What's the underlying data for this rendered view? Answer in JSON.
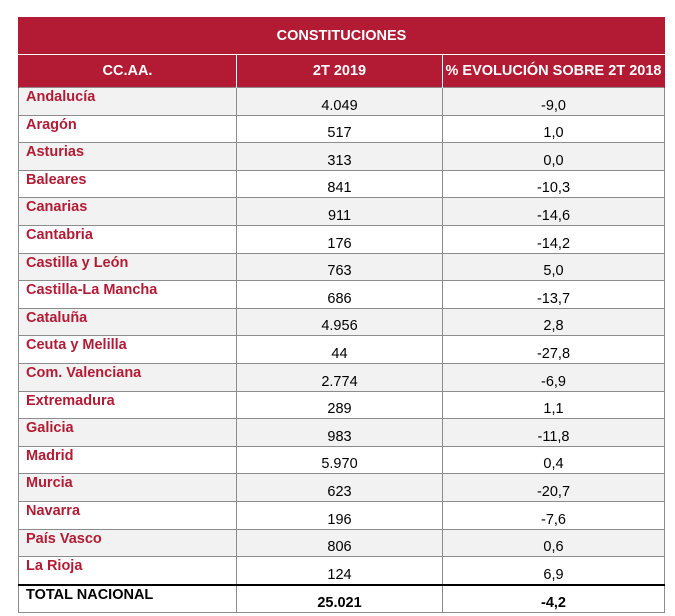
{
  "table": {
    "title": "CONSTITUCIONES",
    "headers": [
      "CC.AA.",
      "2T 2019",
      "% EVOLUCIÓN SOBRE 2T 2018"
    ],
    "rows": [
      {
        "region": "Andalucía",
        "value": "4.049",
        "evolution": "-9,0"
      },
      {
        "region": "Aragón",
        "value": "517",
        "evolution": "1,0"
      },
      {
        "region": "Asturias",
        "value": "313",
        "evolution": "0,0"
      },
      {
        "region": "Baleares",
        "value": "841",
        "evolution": "-10,3"
      },
      {
        "region": "Canarias",
        "value": "911",
        "evolution": "-14,6"
      },
      {
        "region": "Cantabria",
        "value": "176",
        "evolution": "-14,2"
      },
      {
        "region": "Castilla y León",
        "value": "763",
        "evolution": "5,0"
      },
      {
        "region": "Castilla-La Mancha",
        "value": "686",
        "evolution": "-13,7"
      },
      {
        "region": "Cataluña",
        "value": "4.956",
        "evolution": "2,8"
      },
      {
        "region": "Ceuta y Melilla",
        "value": "44",
        "evolution": "-27,8"
      },
      {
        "region": "Com. Valenciana",
        "value": "2.774",
        "evolution": "-6,9"
      },
      {
        "region": "Extremadura",
        "value": "289",
        "evolution": "1,1"
      },
      {
        "region": "Galicia",
        "value": "983",
        "evolution": "-11,8"
      },
      {
        "region": "Madrid",
        "value": "5.970",
        "evolution": "0,4"
      },
      {
        "region": "Murcia",
        "value": "623",
        "evolution": "-20,7"
      },
      {
        "region": "Navarra",
        "value": "196",
        "evolution": "-7,6"
      },
      {
        "region": "País Vasco",
        "value": "806",
        "evolution": "0,6"
      },
      {
        "region": "La Rioja",
        "value": "124",
        "evolution": "6,9"
      }
    ],
    "total": {
      "region": "TOTAL NACIONAL",
      "value": "25.021",
      "evolution": "-4,2"
    }
  },
  "colors": {
    "header_bg": "#b31b34",
    "header_text": "#ffffff",
    "region_text": "#b31b34",
    "row_alt_bg": "#f2f2f2"
  }
}
